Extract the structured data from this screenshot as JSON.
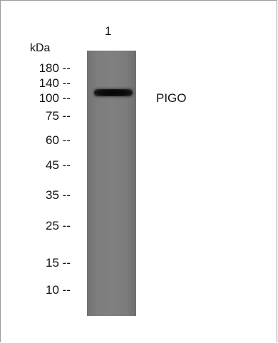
{
  "blot": {
    "lane_number": "1",
    "unit": "kDa",
    "markers": [
      {
        "label": "180 --"
      },
      {
        "label": "140 --"
      },
      {
        "label": "100 --"
      },
      {
        "label": "75 --"
      },
      {
        "label": "60 --"
      },
      {
        "label": "45 --"
      },
      {
        "label": "35 --"
      },
      {
        "label": "25 --"
      },
      {
        "label": "15 --"
      },
      {
        "label": "10 --"
      }
    ],
    "band_label": "PIGO"
  }
}
